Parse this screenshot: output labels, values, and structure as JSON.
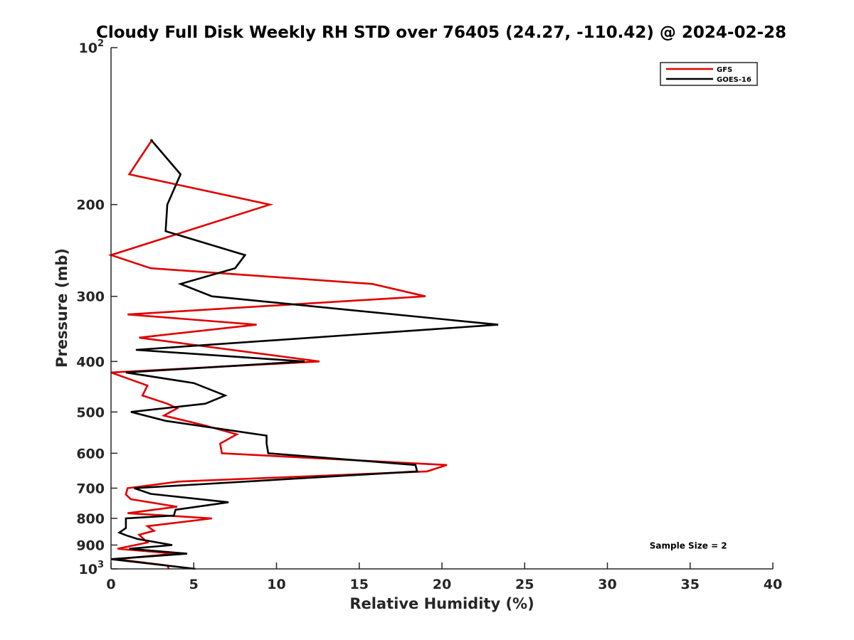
{
  "chart_data": {
    "type": "line",
    "title": "Cloudy Full Disk Weekly RH STD over 76405 (24.27, -110.42) @ 2024-02-28",
    "xlabel": "Relative Humidity (%)",
    "ylabel": "Pressure (mb)",
    "xlim": [
      0,
      40
    ],
    "ylim": [
      100,
      1000
    ],
    "y_scale": "log",
    "y_reversed": true,
    "grid": false,
    "legend_position": "top-right",
    "x_ticks": [
      "0",
      "5",
      "10",
      "15",
      "20",
      "25",
      "30",
      "35",
      "40"
    ],
    "y_ticks": [
      {
        "value": 100,
        "base": "10",
        "exp": "2"
      },
      {
        "value": 200,
        "label": "200"
      },
      {
        "value": 300,
        "label": "300"
      },
      {
        "value": 400,
        "label": "400"
      },
      {
        "value": 500,
        "label": "500"
      },
      {
        "value": 600,
        "label": "600"
      },
      {
        "value": 700,
        "label": "700"
      },
      {
        "value": 800,
        "label": "800"
      },
      {
        "value": 900,
        "label": "900"
      },
      {
        "value": 1000,
        "base": "10",
        "exp": "3"
      }
    ],
    "series": [
      {
        "name": "GFS",
        "color": "#e00000",
        "points": [
          [
            2.5,
            150
          ],
          [
            1.1,
            175
          ],
          [
            9.6,
            200
          ],
          [
            0.0,
            250
          ],
          [
            2.4,
            265
          ],
          [
            15.8,
            284
          ],
          [
            19.0,
            300
          ],
          [
            1.0,
            325
          ],
          [
            8.8,
            340
          ],
          [
            1.7,
            360
          ],
          [
            12.6,
            400
          ],
          [
            0.0,
            420
          ],
          [
            2.2,
            445
          ],
          [
            1.9,
            465
          ],
          [
            3.4,
            482
          ],
          [
            4.0,
            492
          ],
          [
            3.2,
            508
          ],
          [
            5.6,
            530
          ],
          [
            7.6,
            552
          ],
          [
            6.6,
            575
          ],
          [
            6.7,
            600
          ],
          [
            20.3,
            632
          ],
          [
            19.1,
            650
          ],
          [
            4.1,
            680
          ],
          [
            1.0,
            700
          ],
          [
            0.9,
            720
          ],
          [
            1.2,
            735
          ],
          [
            4.0,
            760
          ],
          [
            1.0,
            782
          ],
          [
            6.1,
            800
          ],
          [
            2.2,
            828
          ],
          [
            2.6,
            845
          ],
          [
            1.7,
            860
          ],
          [
            2.2,
            890
          ],
          [
            0.4,
            915
          ],
          [
            3.9,
            935
          ],
          [
            0.3,
            958
          ],
          [
            3.4,
            985
          ],
          [
            3.5,
            1000
          ]
        ]
      },
      {
        "name": "GOES-16",
        "color": "#000000",
        "points": [
          [
            2.4,
            150
          ],
          [
            4.2,
            175
          ],
          [
            3.4,
            200
          ],
          [
            3.3,
            225
          ],
          [
            8.1,
            250
          ],
          [
            7.5,
            265
          ],
          [
            4.2,
            284
          ],
          [
            6.1,
            300
          ],
          [
            23.4,
            340
          ],
          [
            1.5,
            380
          ],
          [
            11.7,
            400
          ],
          [
            0.9,
            420
          ],
          [
            5.0,
            440
          ],
          [
            6.9,
            465
          ],
          [
            5.7,
            482
          ],
          [
            1.2,
            500
          ],
          [
            3.3,
            520
          ],
          [
            9.4,
            555
          ],
          [
            9.4,
            575
          ],
          [
            9.5,
            600
          ],
          [
            18.4,
            632
          ],
          [
            18.5,
            650
          ],
          [
            1.4,
            700
          ],
          [
            2.4,
            718
          ],
          [
            7.1,
            745
          ],
          [
            3.9,
            770
          ],
          [
            3.8,
            790
          ],
          [
            0.9,
            800
          ],
          [
            0.9,
            835
          ],
          [
            0.5,
            852
          ],
          [
            0.9,
            862
          ],
          [
            1.6,
            876
          ],
          [
            3.7,
            900
          ],
          [
            1.1,
            915
          ],
          [
            4.6,
            935
          ],
          [
            0.0,
            958
          ],
          [
            5.1,
            1000
          ]
        ]
      }
    ],
    "annotations": [
      {
        "text": "Sample Size = 2",
        "x": 35,
        "y": 900
      }
    ]
  }
}
